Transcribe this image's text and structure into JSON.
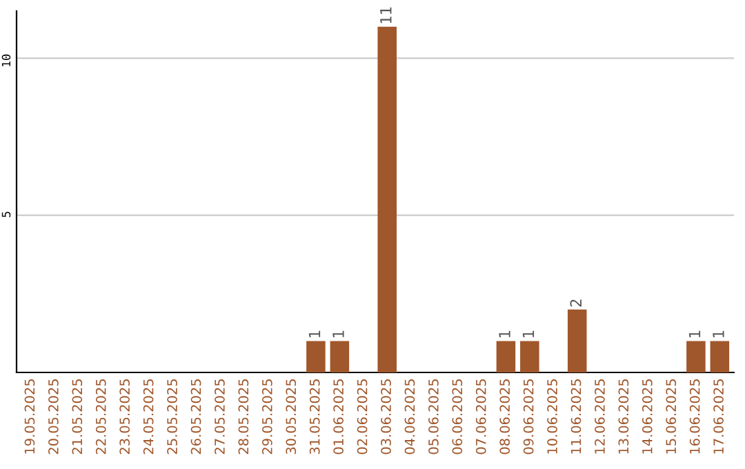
{
  "chart_data": {
    "type": "bar",
    "categories": [
      "19.05.2025",
      "20.05.2025",
      "21.05.2025",
      "22.05.2025",
      "23.05.2025",
      "24.05.2025",
      "25.05.2025",
      "26.05.2025",
      "27.05.2025",
      "28.05.2025",
      "29.05.2025",
      "30.05.2025",
      "31.05.2025",
      "01.06.2025",
      "02.06.2025",
      "03.06.2025",
      "04.06.2025",
      "05.06.2025",
      "06.06.2025",
      "07.06.2025",
      "08.06.2025",
      "09.06.2025",
      "10.06.2025",
      "11.06.2025",
      "12.06.2025",
      "13.06.2025",
      "14.06.2025",
      "15.06.2025",
      "16.06.2025",
      "17.06.2025"
    ],
    "values": [
      0,
      0,
      0,
      0,
      0,
      0,
      0,
      0,
      0,
      0,
      0,
      0,
      1,
      1,
      0,
      11,
      0,
      0,
      0,
      0,
      1,
      1,
      0,
      2,
      0,
      0,
      0,
      0,
      1,
      1
    ],
    "value_labels": [
      null,
      null,
      null,
      null,
      null,
      null,
      null,
      null,
      null,
      null,
      null,
      null,
      "1",
      "1",
      null,
      "11",
      null,
      null,
      null,
      null,
      "1",
      "1",
      null,
      "2",
      null,
      null,
      null,
      null,
      "1",
      "1"
    ],
    "color": "#a0572b",
    "ylim": [
      0,
      11.5
    ],
    "yticks": [
      5,
      10
    ],
    "grid": "y"
  }
}
